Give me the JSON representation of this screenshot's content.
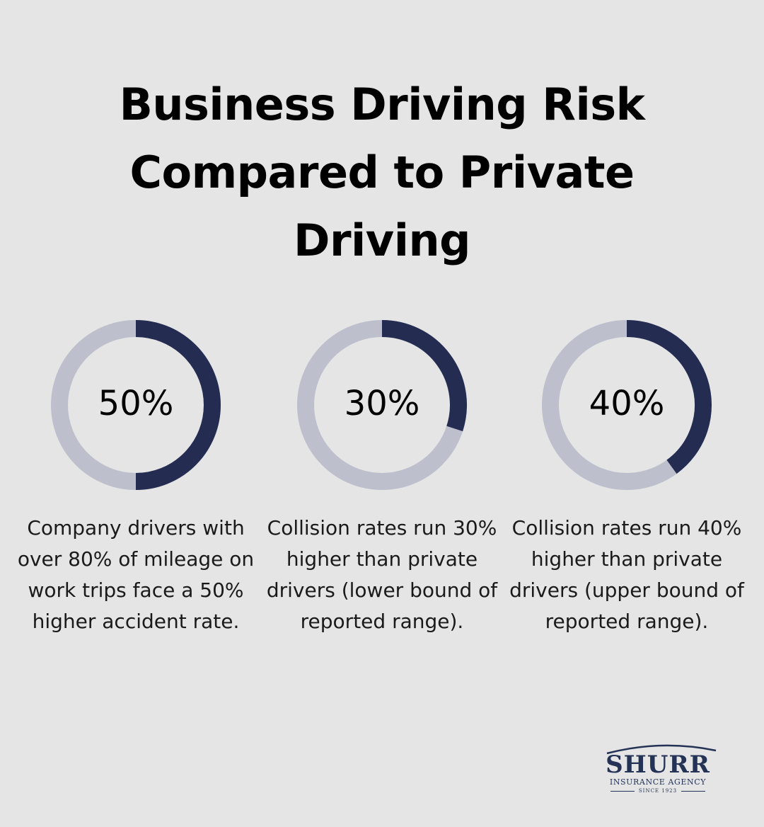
{
  "title": "Business Driving Risk Compared to Private Driving",
  "colors": {
    "background": "#e4e5e4",
    "ring_track": "#bdbfcd",
    "ring_fill": "#242c52",
    "text": "#000000",
    "logo": "#243256"
  },
  "chart_data": [
    {
      "type": "pie",
      "value": 50,
      "label": "50%",
      "description": "Company drivers with over 80% of mileage on work trips face a 50% higher accident rate."
    },
    {
      "type": "pie",
      "value": 30,
      "label": "30%",
      "description": "Collision rates run 30% higher than private drivers (lower bound of reported range)."
    },
    {
      "type": "pie",
      "value": 40,
      "label": "40%",
      "description": "Collision rates run 40% higher than private drivers (upper bound of reported range)."
    }
  ],
  "logo": {
    "name": "SHURR",
    "subtitle": "INSURANCE AGENCY",
    "since": "SINCE 1923"
  }
}
